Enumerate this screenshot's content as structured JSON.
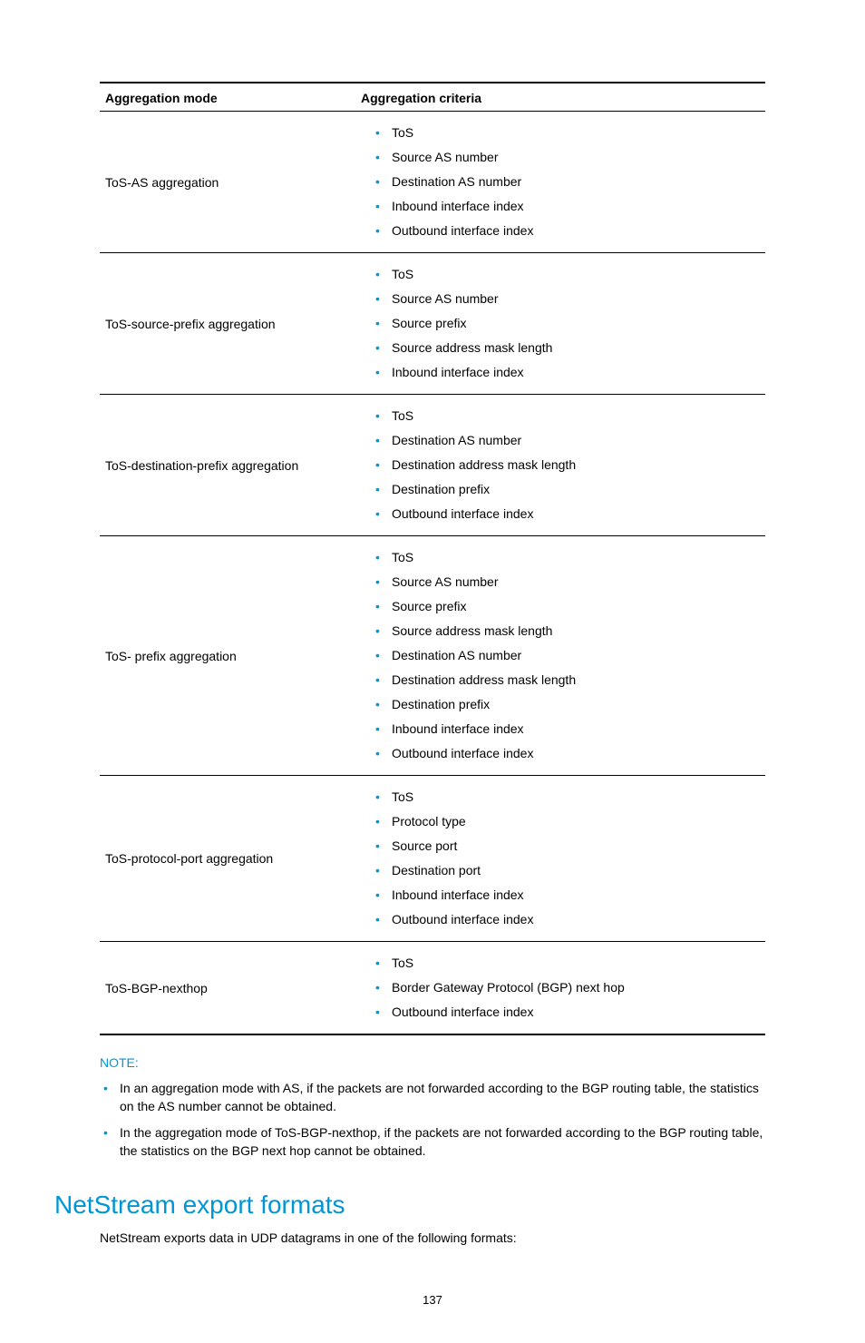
{
  "table": {
    "headers": {
      "mode": "Aggregation mode",
      "criteria": "Aggregation criteria"
    },
    "rows": [
      {
        "mode": "ToS-AS aggregation",
        "criteria": [
          "ToS",
          "Source AS number",
          "Destination AS number",
          "Inbound interface index",
          "Outbound interface index"
        ]
      },
      {
        "mode": "ToS-source-prefix aggregation",
        "criteria": [
          "ToS",
          "Source AS number",
          "Source prefix",
          "Source address mask length",
          "Inbound interface index"
        ]
      },
      {
        "mode": "ToS-destination-prefix aggregation",
        "criteria": [
          "ToS",
          "Destination AS number",
          "Destination address mask length",
          "Destination prefix",
          "Outbound interface index"
        ]
      },
      {
        "mode": "ToS- prefix aggregation",
        "criteria": [
          "ToS",
          "Source AS number",
          "Source prefix",
          "Source address mask length",
          "Destination AS number",
          "Destination address mask length",
          "Destination prefix",
          "Inbound interface index",
          "Outbound interface index"
        ]
      },
      {
        "mode": "ToS-protocol-port aggregation",
        "criteria": [
          "ToS",
          "Protocol type",
          "Source port",
          "Destination port",
          "Inbound interface index",
          "Outbound interface index"
        ]
      },
      {
        "mode": "ToS-BGP-nexthop",
        "criteria": [
          "ToS",
          "Border Gateway Protocol (BGP) next hop",
          "Outbound interface index"
        ]
      }
    ]
  },
  "note": {
    "label": "NOTE:",
    "items": [
      "In an aggregation mode with AS, if the packets are not forwarded according to the BGP routing table, the statistics on the AS number cannot be obtained.",
      "In the aggregation mode of ToS-BGP-nexthop, if the packets are not forwarded according to the BGP routing table, the statistics on the BGP next hop cannot be obtained."
    ]
  },
  "section_heading": "NetStream export formats",
  "body_paragraph": "NetStream exports data in UDP datagrams in one of the following formats:",
  "page_number": "137",
  "colors": {
    "accent": "#0096d6",
    "text": "#000000",
    "background": "#ffffff"
  }
}
